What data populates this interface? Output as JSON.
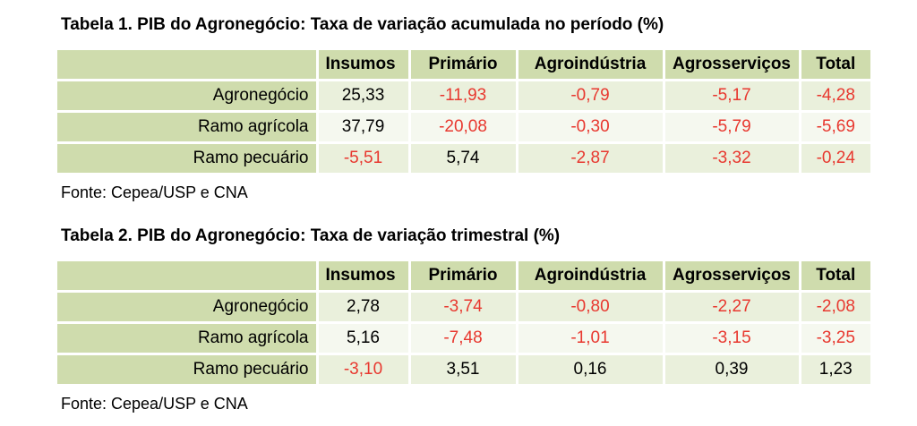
{
  "table1": {
    "caption": "Tabela 1. PIB do Agronegócio: Taxa de variação acumulada no período (%)",
    "columns": [
      "Insumos",
      "Primário",
      "Agroindústria",
      "Agrosserviços",
      "Total"
    ],
    "rows": [
      {
        "label": "Agronegócio",
        "values": [
          "25,33",
          "-11,93",
          "-0,79",
          "-5,17",
          "-4,28"
        ]
      },
      {
        "label": "Ramo agrícola",
        "values": [
          "37,79",
          "-20,08",
          "-0,30",
          "-5,79",
          "-5,69"
        ]
      },
      {
        "label": "Ramo pecuário",
        "values": [
          "-5,51",
          "5,74",
          "-2,87",
          "-3,32",
          "-0,24"
        ]
      }
    ],
    "source": "Fonte: Cepea/USP e CNA"
  },
  "table2": {
    "caption": "Tabela 2. PIB do Agronegócio: Taxa de variação trimestral (%)",
    "columns": [
      "Insumos",
      "Primário",
      "Agroindústria",
      "Agrosserviços",
      "Total"
    ],
    "rows": [
      {
        "label": "Agronegócio",
        "values": [
          "2,78",
          "-3,74",
          "-0,80",
          "-2,27",
          "-2,08"
        ]
      },
      {
        "label": "Ramo agrícola",
        "values": [
          "5,16",
          "-7,48",
          "-1,01",
          "-3,15",
          "-3,25"
        ]
      },
      {
        "label": "Ramo pecuário",
        "values": [
          "-3,10",
          "3,51",
          "0,16",
          "0,39",
          "1,23"
        ]
      }
    ],
    "source": "Fonte: Cepea/USP e CNA"
  },
  "colors": {
    "header_green": "#cfdcad",
    "row_light": "#eaf0dc",
    "row_lighter": "#f5f8ef",
    "negative_red": "#e8382f"
  }
}
